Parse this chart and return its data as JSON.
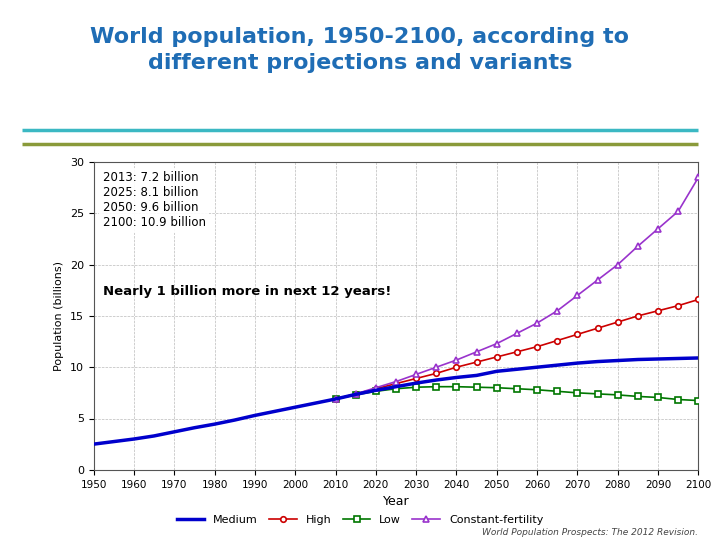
{
  "title_line1": "World population, 1950-2100, according to",
  "title_line2": "different projections and variants",
  "title_color": "#1f6db5",
  "xlabel": "Year",
  "ylabel": "Population (billions)",
  "xlim": [
    1950,
    2100
  ],
  "ylim": [
    0,
    30
  ],
  "yticks": [
    0,
    5,
    10,
    15,
    20,
    25,
    30
  ],
  "xticks": [
    1950,
    1960,
    1970,
    1980,
    1990,
    2000,
    2010,
    2020,
    2030,
    2040,
    2050,
    2060,
    2070,
    2080,
    2090,
    2100
  ],
  "bg_color": "#ffffff",
  "plot_bg_color": "#ffffff",
  "grid_color": "#aaaaaa",
  "teal_line_color": "#3bb8c3",
  "olive_line_color": "#8a9a3a",
  "annotation_text": "2013: 7.2 billion\n2025: 8.1 billion\n2050: 9.6 billion\n2100: 10.9 billion",
  "bold_annotation": "Nearly 1 billion more in next 12 years!",
  "source_text": "World Population Prospects: The 2012 Revision.",
  "medium_color": "#0000cc",
  "high_color": "#cc0000",
  "low_color": "#007700",
  "cf_color": "#9933cc",
  "medium_years": [
    1950,
    1955,
    1960,
    1965,
    1970,
    1975,
    1980,
    1985,
    1990,
    1995,
    2000,
    2005,
    2010,
    2015,
    2020,
    2025,
    2030,
    2035,
    2040,
    2045,
    2050,
    2055,
    2060,
    2065,
    2070,
    2075,
    2080,
    2085,
    2090,
    2095,
    2100
  ],
  "medium_values": [
    2.5,
    2.75,
    3.0,
    3.3,
    3.7,
    4.1,
    4.45,
    4.85,
    5.3,
    5.7,
    6.1,
    6.5,
    6.9,
    7.35,
    7.75,
    8.1,
    8.45,
    8.75,
    9.0,
    9.2,
    9.6,
    9.8,
    10.0,
    10.2,
    10.4,
    10.55,
    10.65,
    10.75,
    10.8,
    10.85,
    10.9
  ],
  "high_years": [
    2010,
    2015,
    2020,
    2025,
    2030,
    2035,
    2040,
    2045,
    2050,
    2055,
    2060,
    2065,
    2070,
    2075,
    2080,
    2085,
    2090,
    2095,
    2100
  ],
  "high_values": [
    6.9,
    7.4,
    7.9,
    8.4,
    8.9,
    9.4,
    10.0,
    10.5,
    11.0,
    11.5,
    12.0,
    12.6,
    13.2,
    13.8,
    14.4,
    15.0,
    15.5,
    16.0,
    16.6
  ],
  "low_years": [
    2010,
    2015,
    2020,
    2025,
    2030,
    2035,
    2040,
    2045,
    2050,
    2055,
    2060,
    2065,
    2070,
    2075,
    2080,
    2085,
    2090,
    2095,
    2100
  ],
  "low_values": [
    6.9,
    7.3,
    7.65,
    7.9,
    8.05,
    8.1,
    8.1,
    8.05,
    8.0,
    7.9,
    7.8,
    7.65,
    7.5,
    7.4,
    7.3,
    7.15,
    7.05,
    6.85,
    6.75
  ],
  "cf_years": [
    2010,
    2015,
    2020,
    2025,
    2030,
    2035,
    2040,
    2045,
    2050,
    2055,
    2060,
    2065,
    2070,
    2075,
    2080,
    2085,
    2090,
    2095,
    2100
  ],
  "cf_values": [
    6.9,
    7.4,
    8.0,
    8.6,
    9.3,
    10.0,
    10.7,
    11.5,
    12.3,
    13.3,
    14.3,
    15.5,
    17.0,
    18.5,
    20.0,
    21.8,
    23.5,
    25.2,
    28.5
  ]
}
